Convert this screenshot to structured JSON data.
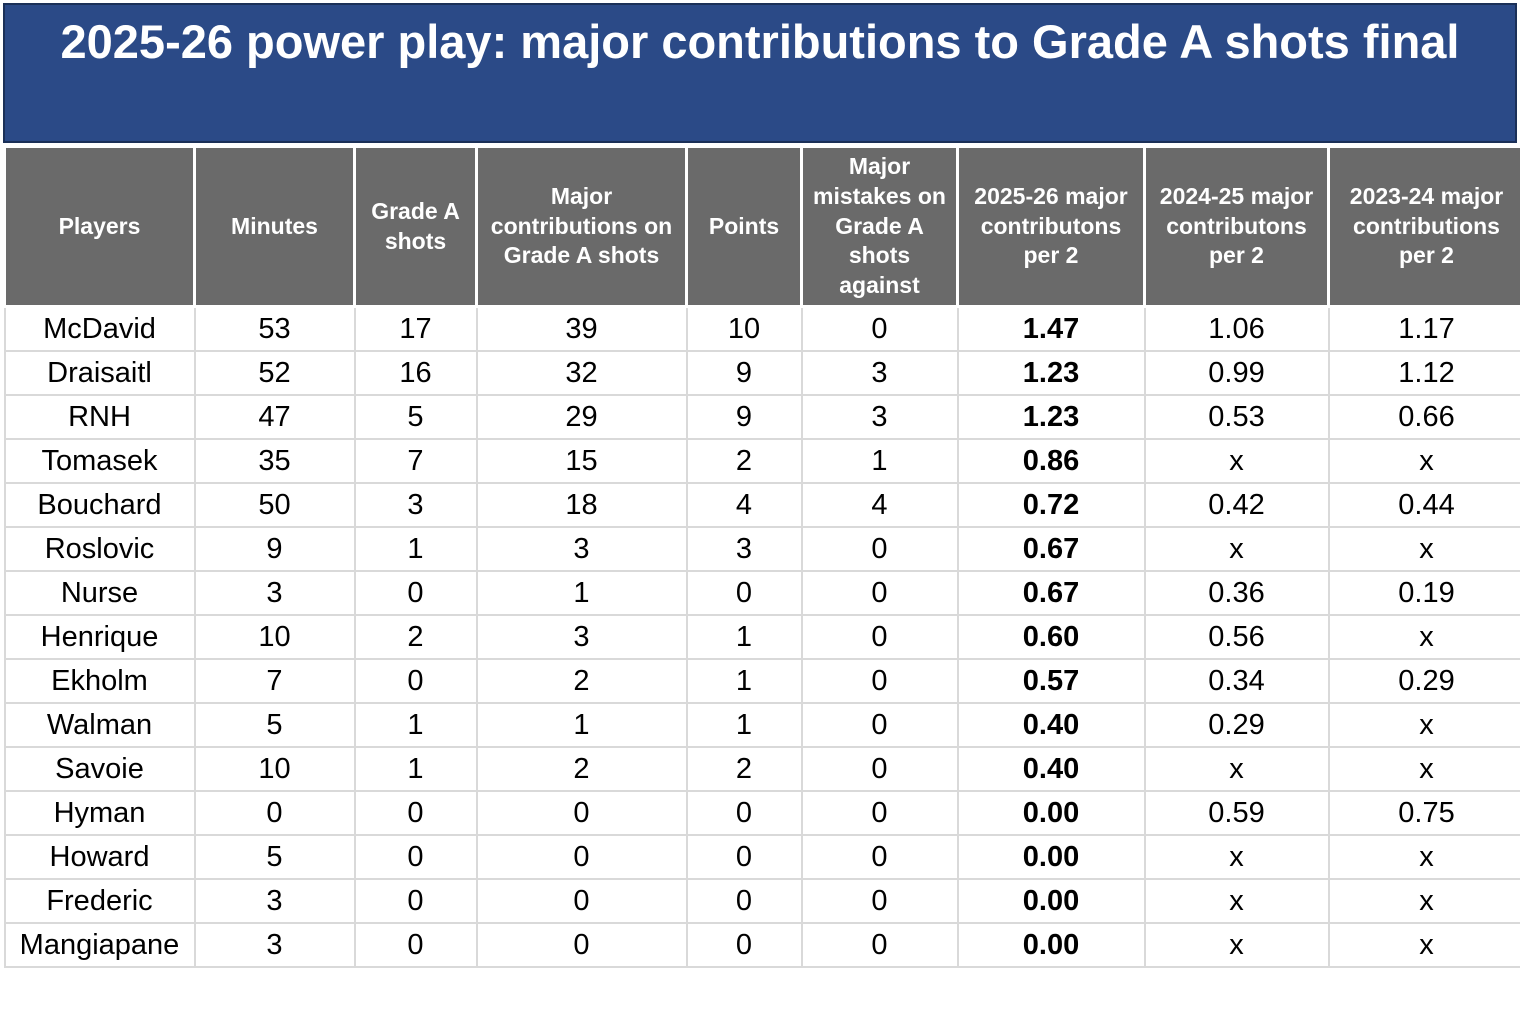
{
  "title": "2025-26 power play: major contributions to Grade A shots final",
  "colors": {
    "title_bg": "#2b4a87",
    "title_border": "#1b3058",
    "title_text": "#ffffff",
    "header_bg": "#6a6a6a",
    "header_text": "#ffffff",
    "grid_line": "#d9d9d9",
    "body_text": "#000000"
  },
  "chart_data": {
    "type": "table",
    "title": "2025-26 power play: major contributions to Grade A shots final",
    "bold_column_index": 6,
    "missing_value_marker": "x",
    "columns": [
      "Players",
      "Minutes",
      "Grade A shots",
      "Major contributions on Grade A shots",
      "Points",
      "Major mistakes on Grade A shots against",
      "2025-26 major contributons per 2",
      "2024-25 major contributons per 2",
      "2023-24 major contributions per 2"
    ],
    "rows": [
      [
        "McDavid",
        "53",
        "17",
        "39",
        "10",
        "0",
        "1.47",
        "1.06",
        "1.17"
      ],
      [
        "Draisaitl",
        "52",
        "16",
        "32",
        "9",
        "3",
        "1.23",
        "0.99",
        "1.12"
      ],
      [
        "RNH",
        "47",
        "5",
        "29",
        "9",
        "3",
        "1.23",
        "0.53",
        "0.66"
      ],
      [
        "Tomasek",
        "35",
        "7",
        "15",
        "2",
        "1",
        "0.86",
        "x",
        "x"
      ],
      [
        "Bouchard",
        "50",
        "3",
        "18",
        "4",
        "4",
        "0.72",
        "0.42",
        "0.44"
      ],
      [
        "Roslovic",
        "9",
        "1",
        "3",
        "3",
        "0",
        "0.67",
        "x",
        "x"
      ],
      [
        "Nurse",
        "3",
        "0",
        "1",
        "0",
        "0",
        "0.67",
        "0.36",
        "0.19"
      ],
      [
        "Henrique",
        "10",
        "2",
        "3",
        "1",
        "0",
        "0.60",
        "0.56",
        "x"
      ],
      [
        "Ekholm",
        "7",
        "0",
        "2",
        "1",
        "0",
        "0.57",
        "0.34",
        "0.29"
      ],
      [
        "Walman",
        "5",
        "1",
        "1",
        "1",
        "0",
        "0.40",
        "0.29",
        "x"
      ],
      [
        "Savoie",
        "10",
        "1",
        "2",
        "2",
        "0",
        "0.40",
        "x",
        "x"
      ],
      [
        "Hyman",
        "0",
        "0",
        "0",
        "0",
        "0",
        "0.00",
        "0.59",
        "0.75"
      ],
      [
        "Howard",
        "5",
        "0",
        "0",
        "0",
        "0",
        "0.00",
        "x",
        "x"
      ],
      [
        "Frederic",
        "3",
        "0",
        "0",
        "0",
        "0",
        "0.00",
        "x",
        "x"
      ],
      [
        "Mangiapane",
        "3",
        "0",
        "0",
        "0",
        "0",
        "0.00",
        "x",
        "x"
      ]
    ]
  }
}
